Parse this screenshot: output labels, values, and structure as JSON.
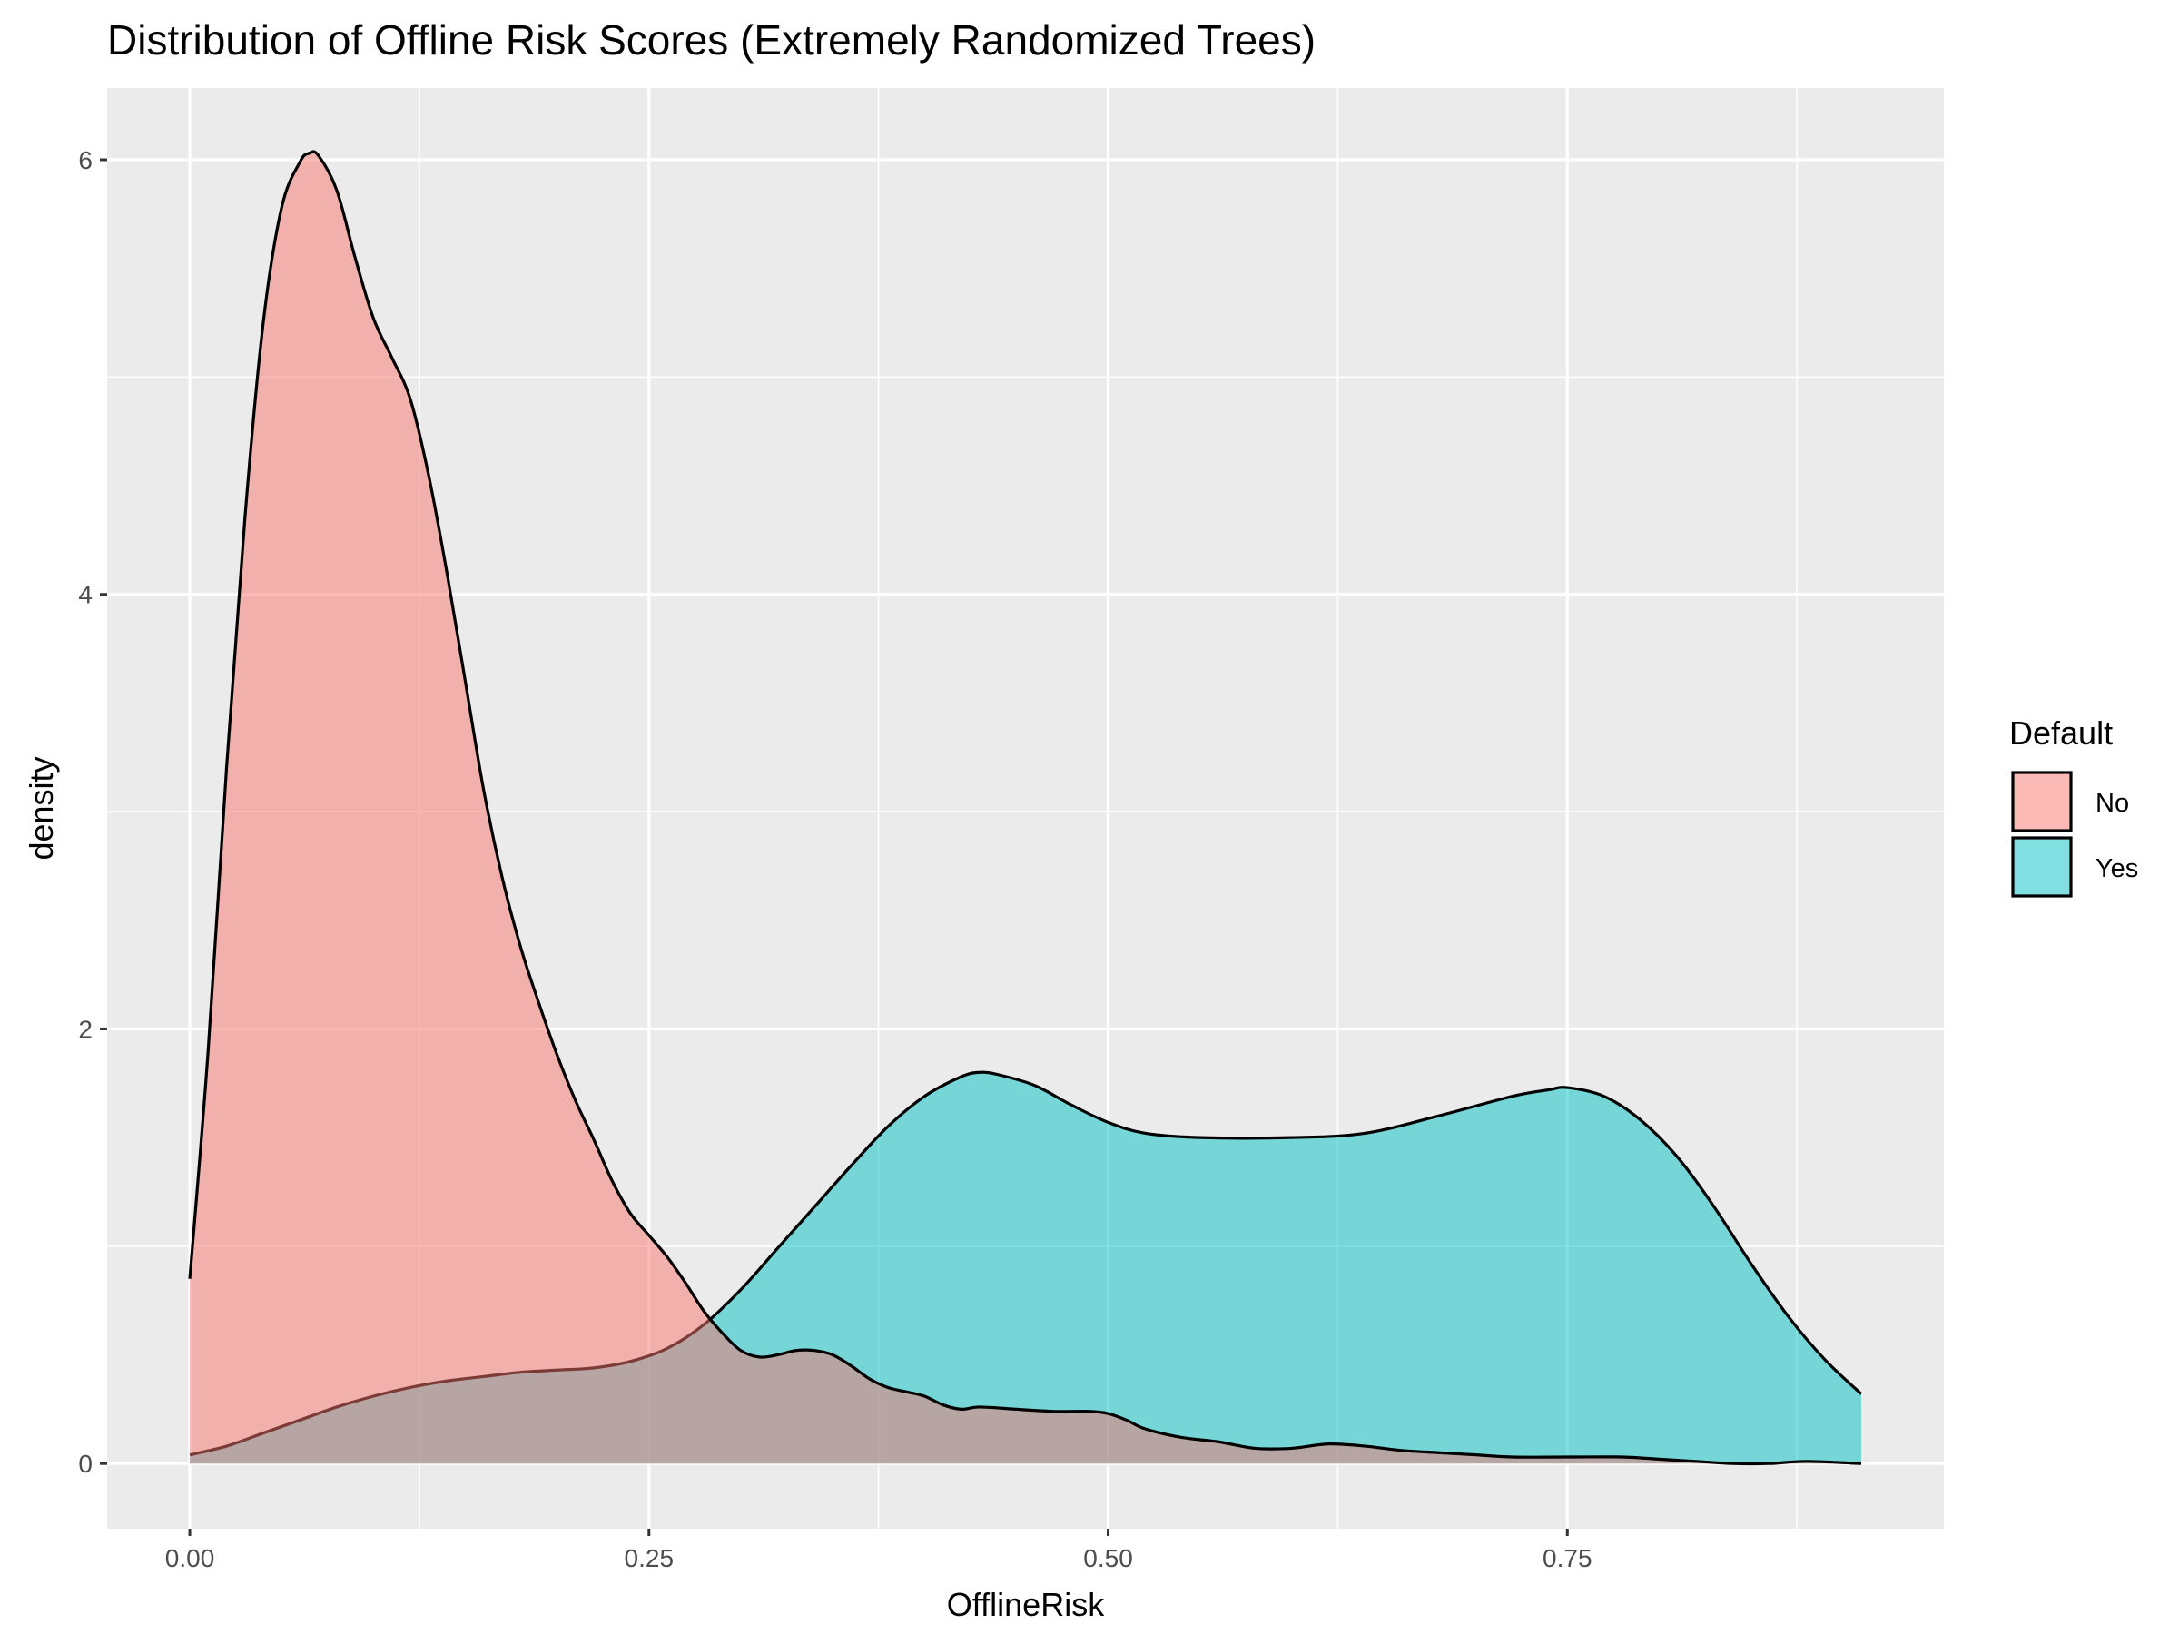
{
  "chart_data": {
    "type": "area",
    "title": "Distribution of Offline Risk Scores (Extremely Randomized Trees)",
    "xlabel": "OfflineRisk",
    "ylabel": "density",
    "xlim": [
      -0.045,
      0.955
    ],
    "ylim": [
      -0.3,
      6.33
    ],
    "x_ticks": [
      0.0,
      0.25,
      0.5,
      0.75
    ],
    "x_tick_labels": [
      "0.00",
      "0.25",
      "0.50",
      "0.75"
    ],
    "x_minor_ticks": [
      0.125,
      0.375,
      0.625,
      0.875
    ],
    "y_ticks": [
      0,
      2,
      4,
      6
    ],
    "y_tick_labels": [
      "0",
      "2",
      "4",
      "6"
    ],
    "y_minor_ticks": [
      1,
      3,
      5
    ],
    "grid": true,
    "legend": {
      "title": "Default",
      "position": "right"
    },
    "series": [
      {
        "name": "No",
        "color": "#F8766D",
        "points": [
          [
            0.0,
            0.85
          ],
          [
            0.01,
            1.9
          ],
          [
            0.02,
            3.2
          ],
          [
            0.03,
            4.35
          ],
          [
            0.04,
            5.25
          ],
          [
            0.05,
            5.78
          ],
          [
            0.06,
            5.99
          ],
          [
            0.065,
            6.03
          ],
          [
            0.07,
            6.02
          ],
          [
            0.08,
            5.86
          ],
          [
            0.09,
            5.55
          ],
          [
            0.1,
            5.27
          ],
          [
            0.11,
            5.09
          ],
          [
            0.12,
            4.9
          ],
          [
            0.13,
            4.55
          ],
          [
            0.14,
            4.1
          ],
          [
            0.15,
            3.6
          ],
          [
            0.16,
            3.1
          ],
          [
            0.17,
            2.7
          ],
          [
            0.18,
            2.38
          ],
          [
            0.19,
            2.12
          ],
          [
            0.2,
            1.88
          ],
          [
            0.21,
            1.67
          ],
          [
            0.22,
            1.49
          ],
          [
            0.23,
            1.3
          ],
          [
            0.24,
            1.15
          ],
          [
            0.25,
            1.05
          ],
          [
            0.26,
            0.95
          ],
          [
            0.27,
            0.83
          ],
          [
            0.28,
            0.7
          ],
          [
            0.29,
            0.6
          ],
          [
            0.3,
            0.52
          ],
          [
            0.31,
            0.49
          ],
          [
            0.32,
            0.5
          ],
          [
            0.33,
            0.52
          ],
          [
            0.34,
            0.52
          ],
          [
            0.35,
            0.5
          ],
          [
            0.36,
            0.45
          ],
          [
            0.37,
            0.39
          ],
          [
            0.38,
            0.35
          ],
          [
            0.39,
            0.33
          ],
          [
            0.4,
            0.31
          ],
          [
            0.41,
            0.27
          ],
          [
            0.42,
            0.25
          ],
          [
            0.43,
            0.26
          ],
          [
            0.45,
            0.25
          ],
          [
            0.47,
            0.24
          ],
          [
            0.49,
            0.24
          ],
          [
            0.5,
            0.23
          ],
          [
            0.51,
            0.2
          ],
          [
            0.52,
            0.16
          ],
          [
            0.54,
            0.12
          ],
          [
            0.56,
            0.1
          ],
          [
            0.58,
            0.07
          ],
          [
            0.6,
            0.07
          ],
          [
            0.62,
            0.09
          ],
          [
            0.64,
            0.08
          ],
          [
            0.66,
            0.06
          ],
          [
            0.68,
            0.05
          ],
          [
            0.7,
            0.04
          ],
          [
            0.72,
            0.03
          ],
          [
            0.75,
            0.03
          ],
          [
            0.78,
            0.03
          ],
          [
            0.8,
            0.02
          ],
          [
            0.82,
            0.01
          ],
          [
            0.84,
            0.0
          ],
          [
            0.86,
            0.0
          ],
          [
            0.88,
            0.01
          ],
          [
            0.91,
            0.0
          ]
        ]
      },
      {
        "name": "Yes",
        "color": "#00BFC4",
        "points": [
          [
            0.0,
            0.04
          ],
          [
            0.02,
            0.08
          ],
          [
            0.04,
            0.14
          ],
          [
            0.06,
            0.2
          ],
          [
            0.08,
            0.26
          ],
          [
            0.1,
            0.31
          ],
          [
            0.12,
            0.35
          ],
          [
            0.14,
            0.38
          ],
          [
            0.16,
            0.4
          ],
          [
            0.18,
            0.42
          ],
          [
            0.2,
            0.43
          ],
          [
            0.22,
            0.44
          ],
          [
            0.24,
            0.47
          ],
          [
            0.26,
            0.53
          ],
          [
            0.28,
            0.64
          ],
          [
            0.3,
            0.8
          ],
          [
            0.32,
            0.99
          ],
          [
            0.34,
            1.18
          ],
          [
            0.36,
            1.37
          ],
          [
            0.38,
            1.55
          ],
          [
            0.4,
            1.69
          ],
          [
            0.42,
            1.78
          ],
          [
            0.43,
            1.8
          ],
          [
            0.44,
            1.79
          ],
          [
            0.46,
            1.74
          ],
          [
            0.48,
            1.65
          ],
          [
            0.5,
            1.57
          ],
          [
            0.52,
            1.52
          ],
          [
            0.55,
            1.5
          ],
          [
            0.6,
            1.5
          ],
          [
            0.64,
            1.52
          ],
          [
            0.68,
            1.6
          ],
          [
            0.72,
            1.69
          ],
          [
            0.74,
            1.72
          ],
          [
            0.75,
            1.73
          ],
          [
            0.77,
            1.69
          ],
          [
            0.79,
            1.58
          ],
          [
            0.81,
            1.41
          ],
          [
            0.83,
            1.18
          ],
          [
            0.85,
            0.92
          ],
          [
            0.87,
            0.68
          ],
          [
            0.89,
            0.48
          ],
          [
            0.91,
            0.32
          ]
        ]
      }
    ]
  }
}
